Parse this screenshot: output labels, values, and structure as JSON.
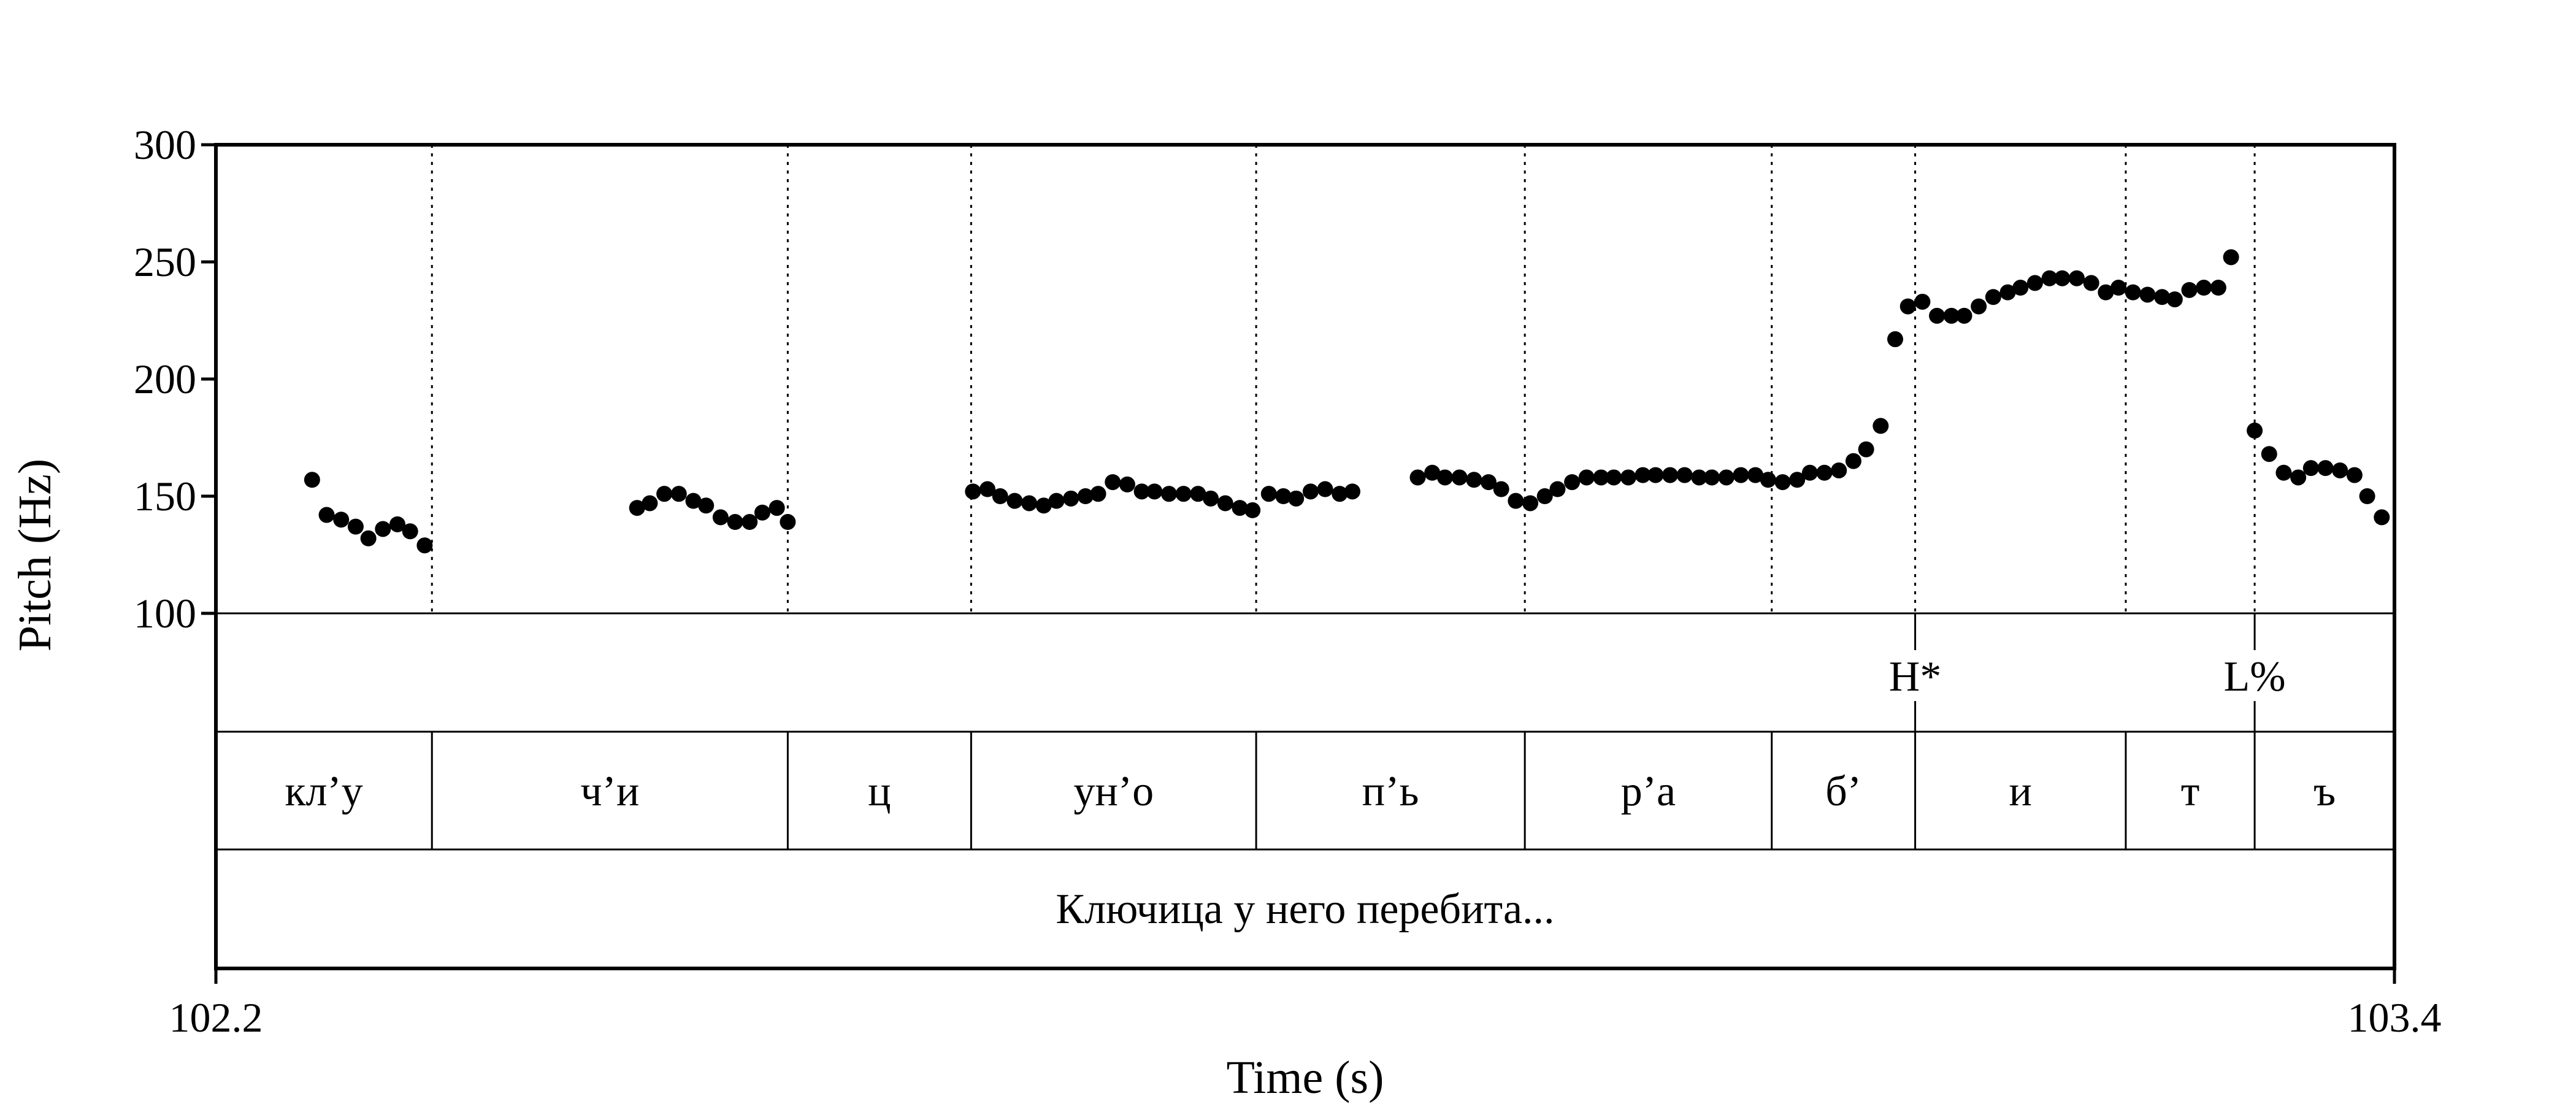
{
  "chart_data": {
    "type": "scatter",
    "xlabel": "Time (s)",
    "ylabel": "Pitch (Hz)",
    "xlim": [
      102.2,
      103.4
    ],
    "ylim": [
      100,
      300
    ],
    "x_tick_labels": [
      "102.2",
      "103.4"
    ],
    "y_ticks": [
      100,
      150,
      200,
      250,
      300
    ],
    "y_tick_labels": [
      "100",
      "150",
      "200",
      "250",
      "300"
    ],
    "segment_boundaries": [
      102.319,
      102.515,
      102.616,
      102.773,
      102.921,
      103.057,
      103.136,
      103.252,
      103.323
    ],
    "tone_tier": [
      {
        "label": "H*",
        "time": 103.136
      },
      {
        "label": "L%",
        "time": 103.323
      }
    ],
    "segment_tier": [
      "кл’у",
      "ч’и",
      "ц",
      "ун’о",
      "п’ь",
      "р’а",
      "б’",
      "и",
      "т",
      "ъ"
    ],
    "sentence_tier": "Ключица у него перебита...",
    "pitch_points": [
      [
        102.253,
        157
      ],
      [
        102.261,
        142
      ],
      [
        102.269,
        140
      ],
      [
        102.277,
        137
      ],
      [
        102.284,
        132
      ],
      [
        102.292,
        136
      ],
      [
        102.3,
        138
      ],
      [
        102.307,
        135
      ],
      [
        102.315,
        129
      ],
      [
        102.432,
        145
      ],
      [
        102.439,
        147
      ],
      [
        102.447,
        151
      ],
      [
        102.455,
        151
      ],
      [
        102.463,
        148
      ],
      [
        102.47,
        146
      ],
      [
        102.478,
        141
      ],
      [
        102.486,
        139
      ],
      [
        102.494,
        139
      ],
      [
        102.501,
        143
      ],
      [
        102.509,
        145
      ],
      [
        102.515,
        139
      ],
      [
        102.617,
        152
      ],
      [
        102.625,
        153
      ],
      [
        102.632,
        150
      ],
      [
        102.64,
        148
      ],
      [
        102.648,
        147
      ],
      [
        102.656,
        146
      ],
      [
        102.663,
        148
      ],
      [
        102.671,
        149
      ],
      [
        102.679,
        150
      ],
      [
        102.686,
        151
      ],
      [
        102.694,
        156
      ],
      [
        102.702,
        155
      ],
      [
        102.71,
        152
      ],
      [
        102.717,
        152
      ],
      [
        102.725,
        151
      ],
      [
        102.733,
        151
      ],
      [
        102.741,
        151
      ],
      [
        102.748,
        149
      ],
      [
        102.756,
        147
      ],
      [
        102.764,
        145
      ],
      [
        102.771,
        144
      ],
      [
        102.78,
        151
      ],
      [
        102.788,
        150
      ],
      [
        102.795,
        149
      ],
      [
        102.803,
        152
      ],
      [
        102.811,
        153
      ],
      [
        102.819,
        151
      ],
      [
        102.826,
        152
      ],
      [
        102.862,
        158
      ],
      [
        102.87,
        160
      ],
      [
        102.877,
        158
      ],
      [
        102.885,
        158
      ],
      [
        102.893,
        157
      ],
      [
        102.901,
        156
      ],
      [
        102.908,
        153
      ],
      [
        102.916,
        148
      ],
      [
        102.924,
        147
      ],
      [
        102.932,
        150
      ],
      [
        102.939,
        153
      ],
      [
        102.947,
        156
      ],
      [
        102.955,
        158
      ],
      [
        102.963,
        158
      ],
      [
        102.97,
        158
      ],
      [
        102.978,
        158
      ],
      [
        102.986,
        159
      ],
      [
        102.993,
        159
      ],
      [
        103.001,
        159
      ],
      [
        103.009,
        159
      ],
      [
        103.017,
        158
      ],
      [
        103.024,
        158
      ],
      [
        103.032,
        158
      ],
      [
        103.04,
        159
      ],
      [
        103.048,
        159
      ],
      [
        103.055,
        157
      ],
      [
        103.063,
        156
      ],
      [
        103.071,
        157
      ],
      [
        103.078,
        160
      ],
      [
        103.086,
        160
      ],
      [
        103.094,
        161
      ],
      [
        103.102,
        165
      ],
      [
        103.109,
        170
      ],
      [
        103.117,
        180
      ],
      [
        103.125,
        217
      ],
      [
        103.132,
        231
      ],
      [
        103.14,
        233
      ],
      [
        103.148,
        227
      ],
      [
        103.156,
        227
      ],
      [
        103.163,
        227
      ],
      [
        103.171,
        231
      ],
      [
        103.179,
        235
      ],
      [
        103.187,
        237
      ],
      [
        103.194,
        239
      ],
      [
        103.202,
        241
      ],
      [
        103.21,
        243
      ],
      [
        103.217,
        243
      ],
      [
        103.225,
        243
      ],
      [
        103.233,
        241
      ],
      [
        103.241,
        237
      ],
      [
        103.248,
        239
      ],
      [
        103.256,
        237
      ],
      [
        103.264,
        236
      ],
      [
        103.272,
        235
      ],
      [
        103.279,
        234
      ],
      [
        103.287,
        238
      ],
      [
        103.295,
        239
      ],
      [
        103.303,
        239
      ],
      [
        103.31,
        252
      ],
      [
        103.323,
        178
      ],
      [
        103.331,
        168
      ],
      [
        103.339,
        160
      ],
      [
        103.347,
        158
      ],
      [
        103.354,
        162
      ],
      [
        103.362,
        162
      ],
      [
        103.37,
        161
      ],
      [
        103.378,
        159
      ],
      [
        103.385,
        150
      ],
      [
        103.393,
        141
      ]
    ]
  }
}
